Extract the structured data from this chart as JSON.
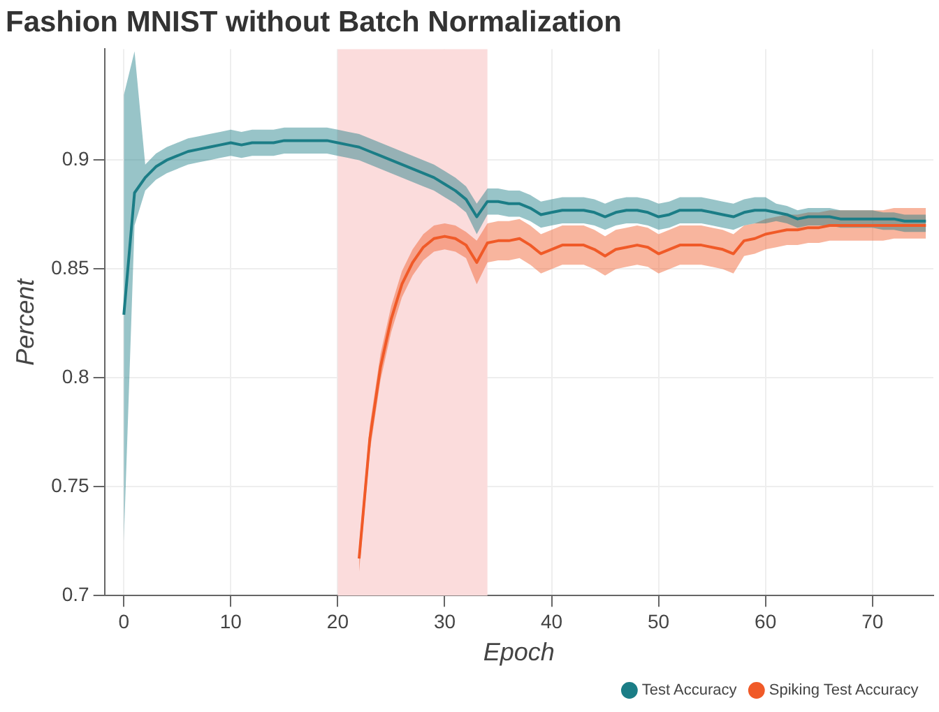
{
  "chart_data": {
    "type": "line",
    "title": "Fashion MNIST without Batch Normalization",
    "xlabel": "Epoch",
    "ylabel": "Percent",
    "xlim": [
      -1.8,
      75.7
    ],
    "xticks": [
      0,
      10,
      20,
      30,
      40,
      50,
      60,
      70
    ],
    "ylim": [
      0.7,
      0.951
    ],
    "yticks": [
      0.7,
      0.75,
      0.8,
      0.85,
      0.9
    ],
    "grid": true,
    "legend": "bottom right",
    "marker": "none",
    "line_style": "solid",
    "bands": [
      {
        "axis": "x",
        "from": 20,
        "to": 34,
        "color": "#fbdcdc"
      }
    ],
    "series": [
      {
        "name": "Test Accuracy",
        "color": "#1b7d86",
        "x": [
          0,
          1,
          2,
          3,
          4,
          5,
          6,
          7,
          8,
          9,
          10,
          11,
          12,
          13,
          14,
          15,
          16,
          17,
          18,
          19,
          20,
          21,
          22,
          23,
          24,
          25,
          26,
          27,
          28,
          29,
          30,
          31,
          32,
          33,
          34,
          35,
          36,
          37,
          38,
          39,
          40,
          41,
          42,
          43,
          44,
          45,
          46,
          47,
          48,
          49,
          50,
          51,
          52,
          53,
          54,
          55,
          56,
          57,
          58,
          59,
          60,
          61,
          62,
          63,
          64,
          65,
          66,
          67,
          68,
          69,
          70,
          71,
          72,
          73,
          74,
          75
        ],
        "values": [
          0.829,
          0.885,
          0.892,
          0.897,
          0.9,
          0.902,
          0.904,
          0.905,
          0.906,
          0.907,
          0.908,
          0.907,
          0.908,
          0.908,
          0.908,
          0.909,
          0.909,
          0.909,
          0.909,
          0.909,
          0.908,
          0.907,
          0.906,
          0.904,
          0.902,
          0.9,
          0.898,
          0.896,
          0.894,
          0.892,
          0.889,
          0.886,
          0.882,
          0.874,
          0.881,
          0.881,
          0.88,
          0.88,
          0.878,
          0.875,
          0.876,
          0.877,
          0.877,
          0.877,
          0.876,
          0.874,
          0.876,
          0.877,
          0.877,
          0.876,
          0.874,
          0.875,
          0.877,
          0.877,
          0.877,
          0.876,
          0.875,
          0.874,
          0.876,
          0.877,
          0.877,
          0.876,
          0.875,
          0.873,
          0.874,
          0.874,
          0.874,
          0.873,
          0.873,
          0.873,
          0.873,
          0.873,
          0.873,
          0.872,
          0.872,
          0.872
        ],
        "lower": [
          0.725,
          0.87,
          0.886,
          0.891,
          0.894,
          0.896,
          0.898,
          0.899,
          0.9,
          0.901,
          0.902,
          0.901,
          0.902,
          0.902,
          0.902,
          0.903,
          0.903,
          0.903,
          0.903,
          0.903,
          0.902,
          0.901,
          0.9,
          0.898,
          0.896,
          0.894,
          0.892,
          0.89,
          0.888,
          0.886,
          0.883,
          0.88,
          0.876,
          0.866,
          0.875,
          0.875,
          0.874,
          0.874,
          0.872,
          0.869,
          0.87,
          0.871,
          0.871,
          0.871,
          0.87,
          0.868,
          0.87,
          0.871,
          0.871,
          0.87,
          0.868,
          0.869,
          0.871,
          0.871,
          0.871,
          0.87,
          0.869,
          0.868,
          0.87,
          0.871,
          0.871,
          0.872,
          0.871,
          0.869,
          0.87,
          0.87,
          0.87,
          0.869,
          0.869,
          0.869,
          0.869,
          0.868,
          0.868,
          0.867,
          0.867,
          0.867
        ],
        "upper": [
          0.93,
          0.95,
          0.898,
          0.903,
          0.906,
          0.908,
          0.91,
          0.911,
          0.912,
          0.913,
          0.914,
          0.913,
          0.914,
          0.914,
          0.914,
          0.915,
          0.915,
          0.915,
          0.915,
          0.915,
          0.914,
          0.913,
          0.912,
          0.91,
          0.908,
          0.906,
          0.904,
          0.902,
          0.9,
          0.898,
          0.895,
          0.892,
          0.888,
          0.88,
          0.887,
          0.887,
          0.886,
          0.886,
          0.884,
          0.881,
          0.882,
          0.883,
          0.883,
          0.883,
          0.882,
          0.88,
          0.882,
          0.883,
          0.883,
          0.882,
          0.88,
          0.881,
          0.883,
          0.883,
          0.883,
          0.882,
          0.881,
          0.88,
          0.882,
          0.883,
          0.883,
          0.88,
          0.879,
          0.877,
          0.878,
          0.878,
          0.878,
          0.877,
          0.877,
          0.877,
          0.877,
          0.876,
          0.876,
          0.875,
          0.875,
          0.875
        ]
      },
      {
        "name": "Spiking Test Accuracy",
        "color": "#f05a28",
        "x": [
          22,
          23,
          24,
          25,
          26,
          27,
          28,
          29,
          30,
          31,
          32,
          33,
          34,
          35,
          36,
          37,
          38,
          39,
          40,
          41,
          42,
          43,
          44,
          45,
          46,
          47,
          48,
          49,
          50,
          51,
          52,
          53,
          54,
          55,
          56,
          57,
          58,
          59,
          60,
          61,
          62,
          63,
          64,
          65,
          66,
          67,
          68,
          69,
          70,
          71,
          72,
          73,
          74,
          75
        ],
        "values": [
          0.717,
          0.772,
          0.805,
          0.827,
          0.843,
          0.853,
          0.86,
          0.864,
          0.865,
          0.864,
          0.861,
          0.853,
          0.862,
          0.863,
          0.863,
          0.864,
          0.861,
          0.857,
          0.859,
          0.861,
          0.861,
          0.861,
          0.859,
          0.856,
          0.859,
          0.86,
          0.861,
          0.86,
          0.857,
          0.859,
          0.861,
          0.861,
          0.861,
          0.86,
          0.859,
          0.857,
          0.863,
          0.864,
          0.866,
          0.867,
          0.868,
          0.868,
          0.869,
          0.869,
          0.87,
          0.87,
          0.87,
          0.87,
          0.87,
          0.87,
          0.87,
          0.87,
          0.87,
          0.87
        ],
        "lower": [
          0.711,
          0.766,
          0.799,
          0.821,
          0.837,
          0.847,
          0.854,
          0.858,
          0.859,
          0.858,
          0.855,
          0.843,
          0.853,
          0.854,
          0.854,
          0.855,
          0.852,
          0.848,
          0.85,
          0.852,
          0.852,
          0.852,
          0.85,
          0.847,
          0.85,
          0.851,
          0.852,
          0.851,
          0.848,
          0.85,
          0.852,
          0.852,
          0.852,
          0.851,
          0.85,
          0.848,
          0.856,
          0.857,
          0.859,
          0.86,
          0.861,
          0.861,
          0.862,
          0.862,
          0.863,
          0.863,
          0.863,
          0.863,
          0.863,
          0.863,
          0.864,
          0.864,
          0.864,
          0.864
        ],
        "upper": [
          0.723,
          0.778,
          0.811,
          0.833,
          0.849,
          0.859,
          0.866,
          0.87,
          0.871,
          0.87,
          0.867,
          0.863,
          0.871,
          0.872,
          0.872,
          0.873,
          0.87,
          0.866,
          0.868,
          0.87,
          0.87,
          0.87,
          0.868,
          0.865,
          0.868,
          0.869,
          0.87,
          0.869,
          0.866,
          0.868,
          0.87,
          0.87,
          0.87,
          0.869,
          0.868,
          0.866,
          0.87,
          0.871,
          0.873,
          0.874,
          0.875,
          0.875,
          0.876,
          0.876,
          0.877,
          0.877,
          0.877,
          0.877,
          0.877,
          0.877,
          0.878,
          0.878,
          0.878,
          0.878
        ]
      }
    ]
  }
}
